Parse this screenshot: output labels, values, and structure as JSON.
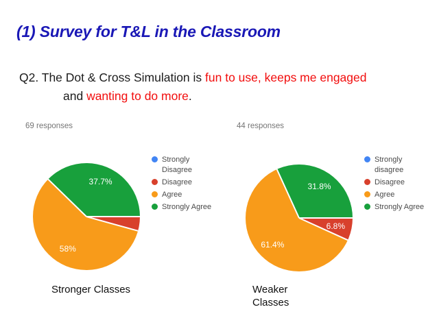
{
  "title": "(1) Survey for T&L in the Classroom",
  "question": {
    "line1": [
      {
        "text": "Q2. The Dot & Cross Simulation is ",
        "color": "dark"
      },
      {
        "text": "fun to use, keeps me engaged",
        "color": "red"
      }
    ],
    "line2": [
      {
        "text": "and ",
        "color": "dark"
      },
      {
        "text": "wanting to do more",
        "color": "red"
      },
      {
        "text": ".",
        "color": "dark"
      }
    ]
  },
  "accent_colors": {
    "title_blue": "#1a18b6",
    "highlight_red": "#f20d0d",
    "slice_label_white": "#ffffff",
    "responses_gray": "#757575"
  },
  "category_colors": [
    "#4285f4",
    "#d8402c",
    "#f89b1a",
    "#18a03c"
  ],
  "chart_data": [
    {
      "type": "pie",
      "title": "Stronger Classes",
      "responses_label": "69 responses",
      "categories": [
        "Strongly Disagree",
        "Disagree",
        "Agree",
        "Strongly Agree"
      ],
      "values": [
        0,
        4.3,
        58,
        37.7
      ],
      "slice_labels": [
        "",
        "",
        "58%",
        "37.7%"
      ],
      "legend_lines": [
        [
          "Strongly",
          "Disagree"
        ],
        [
          "Disagree"
        ],
        [
          "Agree"
        ],
        [
          "Strongly Agree"
        ]
      ],
      "legend_position": "right",
      "start_angle_deg_from_east_clockwise": 0
    },
    {
      "type": "pie",
      "title": "Weaker Classes",
      "responses_label": "44 responses",
      "categories": [
        "Strongly disagree",
        "Disagree",
        "Agree",
        "Strongly Agree"
      ],
      "values": [
        0,
        6.8,
        61.4,
        31.8
      ],
      "slice_labels": [
        "",
        "6.8%",
        "61.4%",
        "31.8%"
      ],
      "legend_lines": [
        [
          "Strongly",
          "disagree"
        ],
        [
          "Disagree"
        ],
        [
          "Agree"
        ],
        [
          "Strongly Agree"
        ]
      ],
      "legend_position": "right",
      "start_angle_deg_from_east_clockwise": 0
    }
  ]
}
